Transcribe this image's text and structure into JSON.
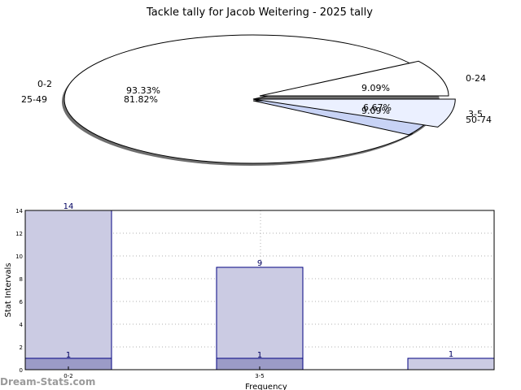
{
  "chart_data": [
    {
      "type": "pie",
      "title": "Tackle tally for Jacob Weitering - 2025 tally",
      "rings": [
        {
          "name": "outer",
          "slices": [
            {
              "label": "25-49",
              "value": 81.82,
              "pct_label": "81.82%"
            },
            {
              "label": "0-24",
              "value": 9.09,
              "pct_label": "9.09%"
            },
            {
              "label": "50-74",
              "value": 9.09,
              "pct_label": "9.09%"
            }
          ]
        },
        {
          "name": "inner",
          "slices": [
            {
              "label": "0-2",
              "value": 93.33,
              "pct_label": "93.33%"
            },
            {
              "label": "3-5",
              "value": 6.67,
              "pct_label": "6.67%"
            }
          ]
        }
      ]
    },
    {
      "type": "bar",
      "xlabel": "Frequency",
      "ylabel": "Stat Intervals",
      "ylim": [
        0,
        14
      ],
      "yticks": [
        "0",
        "2",
        "4",
        "6",
        "8",
        "10",
        "12",
        "14"
      ],
      "categories": [
        "0-2",
        "3-5",
        ""
      ],
      "series": [
        {
          "values": [
            14,
            9,
            1
          ],
          "value_labels": [
            "14",
            "9",
            "1"
          ]
        },
        {
          "values": [
            1,
            1,
            0
          ],
          "value_labels": [
            "1",
            "1",
            ""
          ]
        }
      ],
      "grid": true
    }
  ],
  "watermark": "Dream-Stats.com"
}
